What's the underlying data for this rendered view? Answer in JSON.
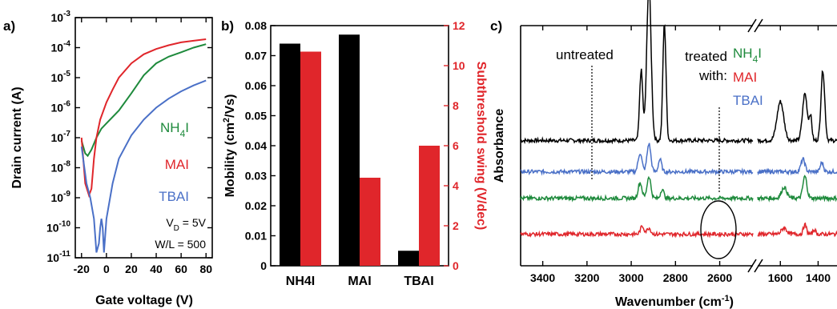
{
  "chart_data": [
    {
      "panel": "a)",
      "type": "line",
      "xlabel": "Gate voltage (V)",
      "ylabel": "Drain current (A)",
      "xlim": [
        -25,
        85
      ],
      "ylim": [
        1e-11,
        0.001
      ],
      "yscale": "log",
      "xticks": [
        "-20",
        "0",
        "20",
        "40",
        "60",
        "80"
      ],
      "yticks": [
        {
          "base": "10",
          "exp": "-11"
        },
        {
          "base": "10",
          "exp": "-10"
        },
        {
          "base": "10",
          "exp": "-9"
        },
        {
          "base": "10",
          "exp": "-8"
        },
        {
          "base": "10",
          "exp": "-7"
        },
        {
          "base": "10",
          "exp": "-6"
        },
        {
          "base": "10",
          "exp": "-5"
        },
        {
          "base": "10",
          "exp": "-4"
        },
        {
          "base": "10",
          "exp": "-3"
        }
      ],
      "series": [
        {
          "name": "NH4I",
          "color": "#1e8a3c",
          "x": [
            -20,
            -17,
            -15,
            -12,
            -8,
            -4,
            0,
            10,
            20,
            30,
            40,
            50,
            60,
            70,
            80
          ],
          "y": [
            8e-08,
            3e-08,
            2.5e-08,
            4e-08,
            1e-07,
            2e-07,
            3e-07,
            8e-07,
            3e-06,
            1.2e-05,
            3e-05,
            5e-05,
            7e-05,
            0.0001,
            0.00013
          ]
        },
        {
          "name": "MAI",
          "color": "#e0262b",
          "x": [
            -20,
            -17,
            -14,
            -12,
            -10,
            -8,
            -5,
            0,
            5,
            10,
            20,
            30,
            40,
            50,
            60,
            70,
            80
          ],
          "y": [
            1e-07,
            3e-09,
            1.2e-09,
            2e-09,
            2e-08,
            1e-07,
            4e-07,
            1.5e-06,
            4e-06,
            1e-05,
            3e-05,
            6e-05,
            9e-05,
            0.00012,
            0.00015,
            0.00017,
            0.00019
          ]
        },
        {
          "name": "TBAI",
          "color": "#4a70c7",
          "x": [
            -20,
            -16,
            -13,
            -10,
            -8,
            -6,
            -5,
            -4,
            -3,
            -2,
            0,
            5,
            10,
            20,
            30,
            40,
            50,
            60,
            70,
            80
          ],
          "y": [
            5e-08,
            3e-09,
            1e-09,
            2e-10,
            1.5e-11,
            3e-11,
            1e-10,
            2e-10,
            1e-10,
            1.5e-11,
            2e-10,
            3e-09,
            2e-08,
            1.2e-07,
            4e-07,
            1e-06,
            2e-06,
            3.5e-06,
            5.5e-06,
            8e-06
          ]
        }
      ],
      "legend": [
        {
          "label": "NH",
          "sub": "4",
          "tail": "I",
          "color": "#1e8a3c"
        },
        {
          "label": "MAI",
          "sub": "",
          "tail": "",
          "color": "#e0262b"
        },
        {
          "label": "TBAI",
          "sub": "",
          "tail": "",
          "color": "#4a70c7"
        }
      ],
      "annotations": [
        {
          "main": "V",
          "sub": "D",
          "tail": " = 5V"
        },
        {
          "main": "W/L = 500",
          "sub": "",
          "tail": ""
        }
      ]
    },
    {
      "panel": "b)",
      "type": "bar",
      "categories": [
        "NH4I",
        "MAI",
        "TBAI"
      ],
      "ylabel": "Mobility (cm²/Vs)",
      "ylabel_parts": {
        "pre": "Mobility (cm",
        "sup": "2",
        "post": "/Vs)"
      },
      "y2label": "Subthreshold swing (V/dec)",
      "ylim": [
        0,
        0.08
      ],
      "y2lim": [
        0,
        12
      ],
      "yticks": [
        "0",
        "0.01",
        "0.02",
        "0.03",
        "0.04",
        "0.05",
        "0.06",
        "0.07",
        "0.08"
      ],
      "y2ticks": [
        "0",
        "2",
        "4",
        "6",
        "8",
        "10",
        "12"
      ],
      "series": [
        {
          "name": "Mobility",
          "axis": "left",
          "color": "#000000",
          "values": [
            0.074,
            0.077,
            0.005
          ]
        },
        {
          "name": "Subthreshold swing",
          "axis": "right",
          "color": "#e0262b",
          "values": [
            10.7,
            4.4,
            6.0
          ]
        }
      ]
    },
    {
      "panel": "c)",
      "type": "line",
      "xlabel": "Wavenumber (cm⁻¹)",
      "xlabel_parts": {
        "pre": "Wavenumber (cm",
        "sup": "-1",
        "post": ")"
      },
      "ylabel": "Absorbance",
      "xticks": [
        "3400",
        "3200",
        "3000",
        "2800",
        "2600",
        "1600",
        "1400"
      ],
      "x_break": [
        2450,
        1720
      ],
      "text": {
        "untreated": "untreated",
        "treated1": "treated",
        "treated2": "with:"
      },
      "legend": [
        {
          "label": "NH",
          "sub": "4",
          "tail": "I",
          "color": "#1e8a3c"
        },
        {
          "label": "MAI",
          "sub": "",
          "tail": "",
          "color": "#e0262b"
        },
        {
          "label": "TBAI",
          "sub": "",
          "tail": "",
          "color": "#4a70c7"
        }
      ],
      "series": [
        {
          "name": "untreated",
          "color": "#000000",
          "offset": 0.7,
          "peaks": [
            [
              2955,
              0.45,
              10
            ],
            [
              2920,
              1.0,
              14
            ],
            [
              2850,
              0.75,
              10
            ],
            [
              1600,
              0.25,
              25
            ],
            [
              1470,
              0.3,
              18
            ],
            [
              1375,
              0.45,
              14
            ],
            [
              1440,
              0.15,
              10
            ]
          ]
        },
        {
          "name": "TBAI",
          "color": "#4a70c7",
          "offset": 0.5,
          "peaks": [
            [
              2960,
              0.12,
              12
            ],
            [
              2920,
              0.18,
              12
            ],
            [
              2870,
              0.08,
              10
            ],
            [
              1480,
              0.08,
              15
            ],
            [
              1380,
              0.06,
              12
            ]
          ]
        },
        {
          "name": "NH4I",
          "color": "#1e8a3c",
          "offset": 0.33,
          "peaks": [
            [
              2960,
              0.1,
              12
            ],
            [
              2920,
              0.14,
              12
            ],
            [
              2860,
              0.06,
              10
            ],
            [
              1580,
              0.07,
              20
            ],
            [
              1470,
              0.14,
              15
            ]
          ]
        },
        {
          "name": "MAI",
          "color": "#e0262b",
          "offset": 0.1,
          "peaks": [
            [
              2950,
              0.05,
              12
            ],
            [
              2920,
              0.04,
              12
            ],
            [
              1580,
              0.04,
              20
            ],
            [
              1470,
              0.06,
              12
            ],
            [
              1420,
              0.03,
              10
            ]
          ]
        }
      ]
    }
  ]
}
